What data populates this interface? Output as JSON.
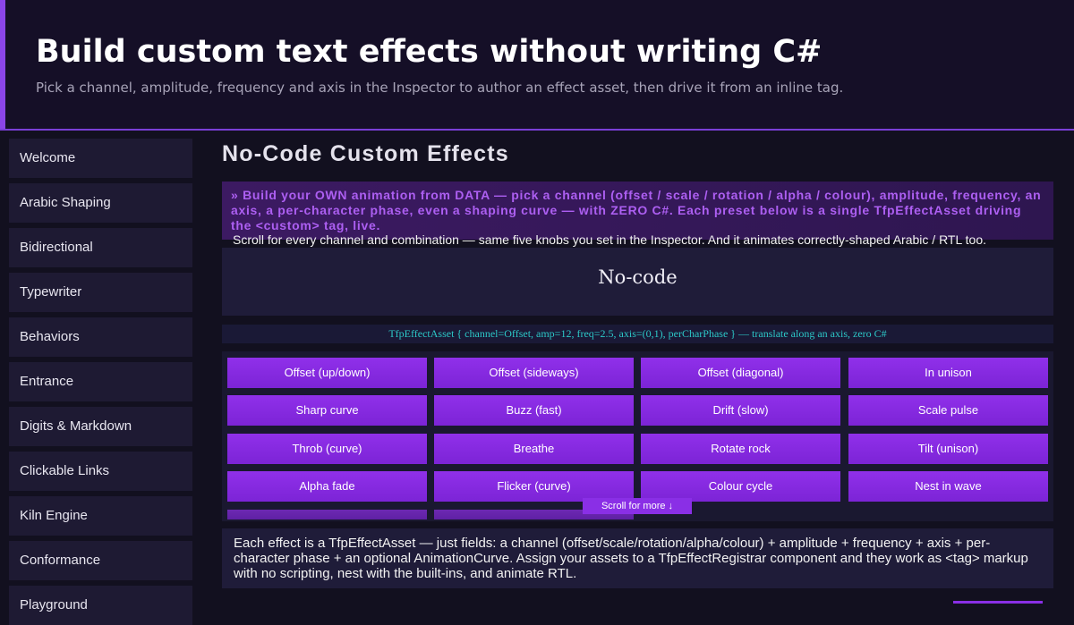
{
  "header": {
    "title": "Build custom text effects without writing C#",
    "subtitle": "Pick a channel, amplitude, frequency and axis in the Inspector to author an effect asset, then drive it from an inline tag."
  },
  "nav": {
    "items": [
      "Welcome",
      "Arabic Shaping",
      "Bidirectional",
      "Typewriter",
      "Behaviors",
      "Entrance",
      "Digits & Markdown",
      "Clickable Links",
      "Kiln Engine",
      "Conformance",
      "Playground"
    ]
  },
  "main": {
    "heading": "No-Code Custom Effects",
    "callout": "» Build your OWN animation from DATA — pick a channel (offset / scale / rotation / alpha / colour), amplitude, frequency, an axis, a per-character phase, even a shaping curve — with ZERO C#. Each preset below is a single TfpEffectAsset driving the <custom> tag, live.",
    "scroll_note": "Scroll for every channel and combination — same five knobs you set in the Inspector. And it animates correctly-shaped Arabic / RTL too.",
    "preview": "No-code",
    "code": "TfpEffectAsset { channel=Offset, amp=12, freq=2.5, axis=(0,1), perCharPhase } — translate along an axis, zero C#",
    "buttons": [
      "Offset (up/down)",
      "Offset (sideways)",
      "Offset (diagonal)",
      "In unison",
      "Sharp curve",
      "Buzz (fast)",
      "Drift (slow)",
      "Scale pulse",
      "Throb (curve)",
      "Breathe",
      "Rotate rock",
      "Tilt (unison)",
      "Alpha fade",
      "Flicker (curve)",
      "Colour cycle",
      "Nest in wave"
    ],
    "scroll_hint": "Scroll for more ↓",
    "footer": "Each effect is a TfpEffectAsset — just fields: a channel (offset/scale/rotation/alpha/colour) + amplitude + frequency + axis + per-character phase + an optional AnimationCurve. Assign your assets to a TfpEffectRegistrar component and they work as <tag> markup with no scripting, nest with the built-ins, and animate RTL."
  }
}
